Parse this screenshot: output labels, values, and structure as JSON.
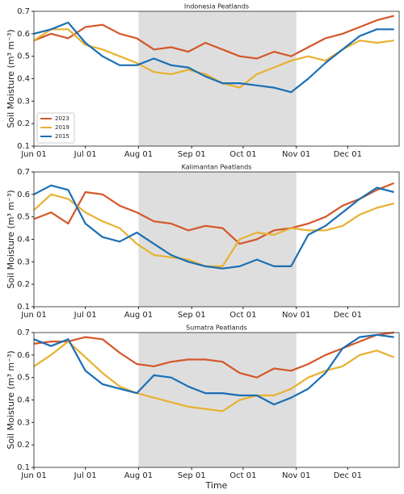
{
  "chart_data": [
    {
      "type": "line",
      "title": "Indonesia Peatlands",
      "ylabel": "Soil Moisture (m³ m⁻³)",
      "x": [
        "Jun 01",
        "Jun 11",
        "Jun 21",
        "Jul 01",
        "Jul 11",
        "Jul 21",
        "Jul 31",
        "Aug 10",
        "Aug 20",
        "Aug 30",
        "Sep 09",
        "Sep 19",
        "Sep 29",
        "Oct 09",
        "Oct 19",
        "Oct 29",
        "Nov 08",
        "Nov 18",
        "Nov 28",
        "Dec 08",
        "Dec 18",
        "Dec 28"
      ],
      "series": [
        {
          "name": "2023",
          "color": "#d4572a",
          "values": [
            0.57,
            0.6,
            0.58,
            0.63,
            0.64,
            0.6,
            0.58,
            0.53,
            0.54,
            0.52,
            0.56,
            0.53,
            0.5,
            0.49,
            0.52,
            0.5,
            0.54,
            0.58,
            0.6,
            0.63,
            0.66,
            0.68
          ]
        },
        {
          "name": "2019",
          "color": "#e8b130",
          "values": [
            0.57,
            0.62,
            0.62,
            0.55,
            0.53,
            0.5,
            0.47,
            0.43,
            0.42,
            0.44,
            0.42,
            0.38,
            0.36,
            0.42,
            0.45,
            0.48,
            0.5,
            0.48,
            0.53,
            0.57,
            0.56,
            0.57
          ]
        },
        {
          "name": "2015",
          "color": "#1a6fb5",
          "values": [
            0.6,
            0.62,
            0.65,
            0.56,
            0.5,
            0.46,
            0.46,
            0.49,
            0.46,
            0.45,
            0.41,
            0.38,
            0.38,
            0.37,
            0.36,
            0.34,
            0.4,
            0.47,
            0.53,
            0.59,
            0.62,
            0.62
          ]
        }
      ],
      "xlim": [
        "Jun 01",
        "Dec 31"
      ],
      "xticks": [
        "Jun 01",
        "Jul 01",
        "Aug 01",
        "Sep 01",
        "Oct 01",
        "Nov 01",
        "Dec 01"
      ],
      "ylim": [
        0.1,
        0.7
      ],
      "yticks": [
        0.1,
        0.2,
        0.3,
        0.4,
        0.5,
        0.6,
        0.7
      ],
      "shaded_region": [
        "Aug 01",
        "Nov 01"
      ],
      "legend": "lower left"
    },
    {
      "type": "line",
      "title": "Kalimantan Peatlands",
      "ylabel": "Soil Moisture (m³ m⁻³)",
      "x": [
        "Jun 01",
        "Jun 11",
        "Jun 21",
        "Jul 01",
        "Jul 11",
        "Jul 21",
        "Jul 31",
        "Aug 10",
        "Aug 20",
        "Aug 30",
        "Sep 09",
        "Sep 19",
        "Sep 29",
        "Oct 09",
        "Oct 19",
        "Oct 29",
        "Nov 08",
        "Nov 18",
        "Nov 28",
        "Dec 08",
        "Dec 18",
        "Dec 28"
      ],
      "series": [
        {
          "color": "#d4572a",
          "values": [
            0.49,
            0.52,
            0.47,
            0.61,
            0.6,
            0.55,
            0.52,
            0.48,
            0.47,
            0.44,
            0.46,
            0.45,
            0.38,
            0.4,
            0.44,
            0.45,
            0.47,
            0.5,
            0.55,
            0.58,
            0.62,
            0.65
          ]
        },
        {
          "color": "#e8b130",
          "values": [
            0.53,
            0.6,
            0.58,
            0.52,
            0.48,
            0.45,
            0.38,
            0.33,
            0.32,
            0.31,
            0.28,
            0.28,
            0.4,
            0.43,
            0.42,
            0.45,
            0.44,
            0.44,
            0.46,
            0.51,
            0.54,
            0.56
          ]
        },
        {
          "color": "#1a6fb5",
          "values": [
            0.6,
            0.64,
            0.62,
            0.47,
            0.41,
            0.39,
            0.43,
            0.38,
            0.33,
            0.3,
            0.28,
            0.27,
            0.28,
            0.31,
            0.28,
            0.28,
            0.42,
            0.46,
            0.52,
            0.58,
            0.63,
            0.61
          ]
        }
      ],
      "xlim": [
        "Jun 01",
        "Dec 31"
      ],
      "xticks": [
        "Jun 01",
        "Jul 01",
        "Aug 01",
        "Sep 01",
        "Oct 01",
        "Nov 01",
        "Dec 01"
      ],
      "ylim": [
        0.1,
        0.7
      ],
      "yticks": [
        0.1,
        0.2,
        0.3,
        0.4,
        0.5,
        0.6,
        0.7
      ],
      "shaded_region": [
        "Aug 01",
        "Nov 01"
      ]
    },
    {
      "type": "line",
      "title": "Sumatra Peatlands",
      "ylabel": "Soil Moisture (m³ m⁻³)",
      "xlabel": "Time",
      "x": [
        "Jun 01",
        "Jun 11",
        "Jun 21",
        "Jul 01",
        "Jul 11",
        "Jul 21",
        "Jul 31",
        "Aug 10",
        "Aug 20",
        "Aug 30",
        "Sep 09",
        "Sep 19",
        "Sep 29",
        "Oct 09",
        "Oct 19",
        "Oct 29",
        "Nov 08",
        "Nov 18",
        "Nov 28",
        "Dec 08",
        "Dec 18",
        "Dec 28"
      ],
      "series": [
        {
          "color": "#d4572a",
          "values": [
            0.65,
            0.66,
            0.66,
            0.68,
            0.67,
            0.61,
            0.56,
            0.55,
            0.57,
            0.58,
            0.58,
            0.57,
            0.52,
            0.5,
            0.54,
            0.53,
            0.56,
            0.6,
            0.63,
            0.66,
            0.69,
            0.7
          ]
        },
        {
          "color": "#e8b130",
          "values": [
            0.55,
            0.6,
            0.66,
            0.59,
            0.52,
            0.46,
            0.43,
            0.41,
            0.39,
            0.37,
            0.36,
            0.35,
            0.4,
            0.42,
            0.42,
            0.45,
            0.5,
            0.53,
            0.55,
            0.6,
            0.62,
            0.59
          ]
        },
        {
          "color": "#1a6fb5",
          "values": [
            0.67,
            0.64,
            0.67,
            0.53,
            0.47,
            0.45,
            0.43,
            0.51,
            0.5,
            0.46,
            0.43,
            0.43,
            0.42,
            0.42,
            0.38,
            0.41,
            0.45,
            0.52,
            0.63,
            0.68,
            0.69,
            0.68
          ]
        }
      ],
      "xlim": [
        "Jun 01",
        "Dec 31"
      ],
      "xticks": [
        "Jun 01",
        "Jul 01",
        "Aug 01",
        "Sep 01",
        "Oct 01",
        "Nov 01",
        "Dec 01"
      ],
      "ylim": [
        0.1,
        0.7
      ],
      "yticks": [
        0.1,
        0.2,
        0.3,
        0.4,
        0.5,
        0.6,
        0.7
      ],
      "shaded_region": [
        "Aug 01",
        "Nov 01"
      ]
    }
  ]
}
